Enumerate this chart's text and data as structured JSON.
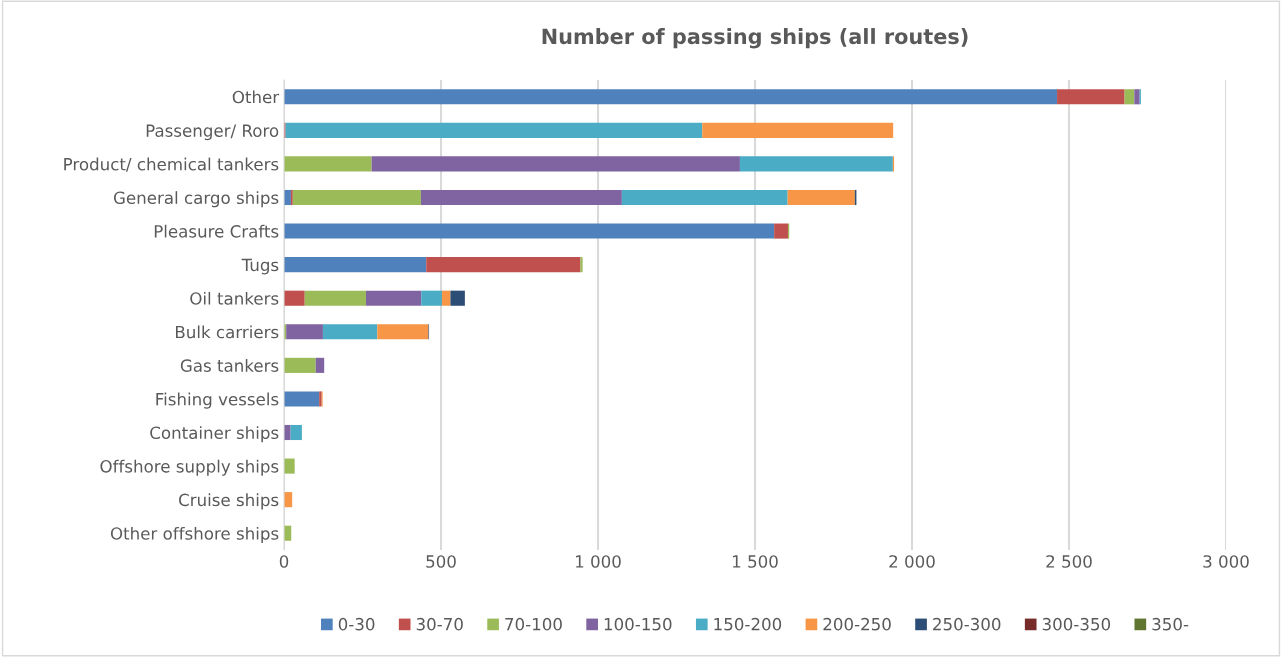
{
  "chart_data": {
    "type": "bar",
    "orientation": "horizontal",
    "stacked": true,
    "title": "Number of passing ships (all routes)",
    "categories": [
      "Other",
      "Passenger/ Roro",
      "Product/ chemical tankers",
      "General cargo ships",
      "Pleasure Crafts",
      "Tugs",
      "Oil tankers",
      "Bulk carriers",
      "Gas tankers",
      "Fishing vessels",
      "Container ships",
      "Offshore supply ships",
      "Cruise ships",
      "Other offshore ships"
    ],
    "series": [
      {
        "name": "0-30",
        "color": "#4f81bd",
        "values": [
          2462,
          null,
          0,
          22,
          1561,
          453,
          0,
          0,
          0,
          112,
          0,
          0,
          0,
          0
        ]
      },
      {
        "name": "30-70",
        "color": "#c0504d",
        "values": [
          215,
          5,
          0,
          6,
          44,
          491,
          66,
          0,
          0,
          8,
          0,
          0,
          0,
          0
        ]
      },
      {
        "name": "70-100",
        "color": "#9bbb59",
        "values": [
          31,
          0,
          279,
          408,
          4,
          7,
          195,
          7,
          101,
          0,
          0,
          34,
          0,
          23
        ]
      },
      {
        "name": "100-150",
        "color": "#8064a2",
        "values": [
          17,
          0,
          1173,
          640,
          0,
          0,
          176,
          117,
          27,
          0,
          21,
          0,
          0,
          0
        ]
      },
      {
        "name": "150-200",
        "color": "#4bacc6",
        "values": [
          4,
          1327,
          487,
          528,
          0,
          0,
          66,
          173,
          0,
          0,
          36,
          0,
          0,
          0
        ]
      },
      {
        "name": "200-250",
        "color": "#f79646",
        "values": [
          0,
          608,
          4,
          214,
          0,
          0,
          27,
          163,
          0,
          3,
          0,
          0,
          26,
          0
        ]
      },
      {
        "name": "250-300",
        "color": "#2c4d75",
        "values": [
          0,
          0,
          0,
          5,
          0,
          0,
          46,
          2,
          0,
          0,
          0,
          0,
          0,
          0
        ]
      },
      {
        "name": "300-350",
        "color": "#772c2a",
        "values": [
          0,
          0,
          0,
          0,
          0,
          0,
          0,
          0,
          0,
          0,
          0,
          0,
          0,
          0
        ]
      },
      {
        "name": "350-",
        "color": "#5f7530",
        "values": [
          0,
          0,
          0,
          0,
          0,
          0,
          0,
          0,
          0,
          0,
          0,
          0,
          0,
          0
        ]
      }
    ],
    "xlim": [
      0,
      3000
    ],
    "xticks": [
      0,
      500,
      {
        "value": 1000,
        "label": "1 000"
      },
      {
        "value": 1500,
        "label": "1 500"
      },
      {
        "value": 2000,
        "label": "2 000"
      },
      {
        "value": 2500,
        "label": "2 500"
      },
      {
        "value": 3000,
        "label": "3 000"
      }
    ],
    "grid": "x",
    "legend": "bottom"
  }
}
